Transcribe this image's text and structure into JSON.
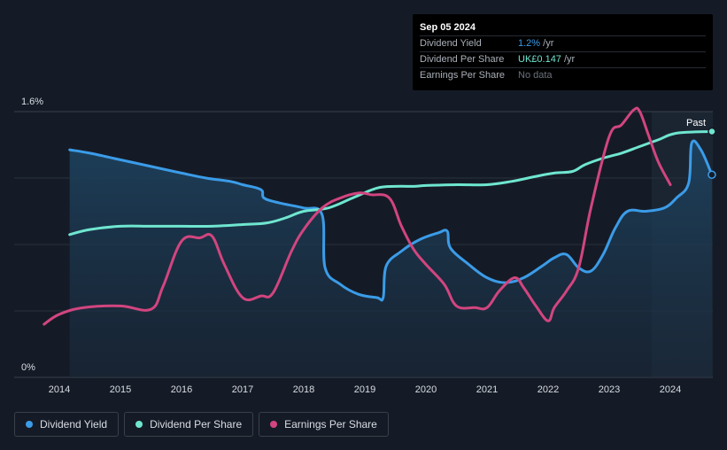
{
  "tooltip": {
    "date": "Sep 05 2024",
    "rows": [
      {
        "label": "Dividend Yield",
        "value": "1.2%",
        "suffix": " /yr"
      },
      {
        "label": "Dividend Per Share",
        "value": "UK£0.147",
        "suffix": " /yr"
      },
      {
        "label": "Earnings Per Share",
        "value": "No data",
        "suffix": ""
      }
    ]
  },
  "legend": [
    {
      "label": "Dividend Yield",
      "color": "#3b9ce8"
    },
    {
      "label": "Dividend Per Share",
      "color": "#6fe6d0"
    },
    {
      "label": "Earnings Per Share",
      "color": "#d2457f"
    }
  ],
  "chart_data": {
    "type": "line",
    "y_labels": [
      "1.6%",
      "0%"
    ],
    "x_ticks": [
      2014,
      2015,
      2016,
      2017,
      2018,
      2019,
      2020,
      2021,
      2022,
      2023,
      2024
    ],
    "past_label": "Past",
    "ylim": [
      0,
      1.6
    ],
    "grid": true,
    "legend_position": "bottom-left",
    "series": [
      {
        "name": "Dividend Yield",
        "color": "#3b9ce8",
        "x": [
          2014.17,
          2014.5,
          2015.0,
          2015.5,
          2016.0,
          2016.4,
          2016.8,
          2017.0,
          2017.3,
          2017.35,
          2017.6,
          2018.0,
          2018.3,
          2018.35,
          2018.6,
          2018.9,
          2019.2,
          2019.3,
          2019.35,
          2019.6,
          2019.9,
          2020.2,
          2020.35,
          2020.4,
          2020.7,
          2021.0,
          2021.3,
          2021.6,
          2021.9,
          2022.1,
          2022.3,
          2022.5,
          2022.7,
          2022.9,
          2023.1,
          2023.3,
          2023.6,
          2023.9,
          2024.1,
          2024.3,
          2024.35,
          2024.5,
          2024.68
        ],
        "y": [
          1.37,
          1.35,
          1.31,
          1.27,
          1.23,
          1.2,
          1.18,
          1.16,
          1.13,
          1.08,
          1.05,
          1.02,
          0.98,
          0.66,
          0.56,
          0.5,
          0.48,
          0.48,
          0.67,
          0.76,
          0.83,
          0.87,
          0.88,
          0.78,
          0.68,
          0.6,
          0.57,
          0.6,
          0.67,
          0.72,
          0.74,
          0.66,
          0.64,
          0.74,
          0.9,
          1.0,
          1.0,
          1.02,
          1.08,
          1.17,
          1.41,
          1.37,
          1.22
        ]
      },
      {
        "name": "Dividend Per Share",
        "color": "#6fe6d0",
        "x": [
          2014.17,
          2014.5,
          2015.0,
          2015.5,
          2016.0,
          2016.5,
          2017.0,
          2017.4,
          2017.7,
          2018.0,
          2018.4,
          2018.8,
          2019.2,
          2019.5,
          2019.8,
          2020.0,
          2020.5,
          2021.0,
          2021.4,
          2021.8,
          2022.1,
          2022.4,
          2022.6,
          2022.9,
          2023.2,
          2023.5,
          2023.8,
          2024.1,
          2024.68
        ],
        "y": [
          0.86,
          0.89,
          0.91,
          0.91,
          0.91,
          0.91,
          0.92,
          0.93,
          0.96,
          1.0,
          1.02,
          1.08,
          1.14,
          1.15,
          1.15,
          1.155,
          1.16,
          1.16,
          1.18,
          1.21,
          1.23,
          1.24,
          1.28,
          1.32,
          1.35,
          1.39,
          1.43,
          1.47,
          1.48
        ]
      },
      {
        "name": "Earnings Per Share",
        "color": "#d2457f",
        "x": [
          2013.75,
          2014.0,
          2014.4,
          2015.0,
          2015.5,
          2015.7,
          2016.0,
          2016.3,
          2016.5,
          2016.7,
          2017.0,
          2017.3,
          2017.5,
          2017.8,
          2018.0,
          2018.3,
          2018.6,
          2018.9,
          2019.1,
          2019.4,
          2019.6,
          2019.8,
          2020.0,
          2020.3,
          2020.5,
          2020.8,
          2021.0,
          2021.2,
          2021.45,
          2021.6,
          2021.8,
          2022.0,
          2022.1,
          2022.3,
          2022.5,
          2022.7,
          2023.0,
          2023.2,
          2023.4,
          2023.5,
          2023.65,
          2023.8,
          2024.0
        ],
        "y": [
          0.32,
          0.38,
          0.42,
          0.43,
          0.41,
          0.55,
          0.82,
          0.84,
          0.85,
          0.68,
          0.48,
          0.49,
          0.51,
          0.76,
          0.89,
          1.02,
          1.08,
          1.11,
          1.1,
          1.08,
          0.91,
          0.77,
          0.68,
          0.56,
          0.43,
          0.42,
          0.42,
          0.52,
          0.6,
          0.54,
          0.43,
          0.34,
          0.42,
          0.52,
          0.66,
          1.02,
          1.45,
          1.52,
          1.61,
          1.6,
          1.45,
          1.3,
          1.16
        ]
      }
    ]
  }
}
